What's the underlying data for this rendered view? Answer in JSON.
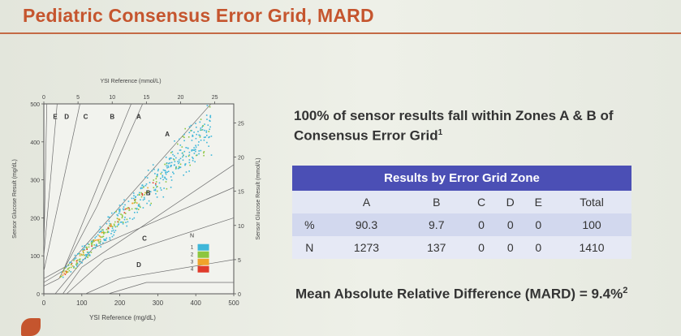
{
  "slide": {
    "title": "Pediatric Consensus Error Grid, MARD"
  },
  "statement": {
    "text": "100% of sensor results fall within Zones A & B of Consensus Error Grid",
    "sup": "1"
  },
  "results_table": {
    "title": "Results by Error Grid Zone",
    "columns": [
      "",
      "A",
      "B",
      "C",
      "D",
      "E",
      "Total"
    ],
    "rows": [
      {
        "label": "%",
        "values": [
          "90.3",
          "9.7",
          "0",
          "0",
          "0",
          "100"
        ]
      },
      {
        "label": "N",
        "values": [
          "1273",
          "137",
          "0",
          "0",
          "0",
          "1410"
        ]
      }
    ]
  },
  "mard": {
    "text": "Mean Absolute Relative Difference (MARD) = 9.4%",
    "sup": "2"
  },
  "chart_data": {
    "type": "scatter",
    "title": "",
    "xlabel": "YSI Reference (mg/dL)",
    "ylabel": "Sensor Glucose Result (mg/dL)",
    "x2label": "YSI Reference (mmol/L)",
    "y2label": "Sensor Glucose Result (mmol/L)",
    "xlim": [
      0,
      500
    ],
    "ylim": [
      0,
      500
    ],
    "x_ticks": [
      0,
      100,
      200,
      300,
      400,
      500
    ],
    "y_ticks": [
      0,
      100,
      200,
      300,
      400,
      500
    ],
    "x2_ticks": [
      0,
      5,
      10,
      15,
      20,
      25
    ],
    "y2_ticks": [
      0,
      5,
      10,
      15,
      20,
      25
    ],
    "zone_labels": [
      {
        "label": "E",
        "x": 30,
        "y": 460
      },
      {
        "label": "D",
        "x": 60,
        "y": 460
      },
      {
        "label": "C",
        "x": 110,
        "y": 460
      },
      {
        "label": "B",
        "x": 180,
        "y": 460
      },
      {
        "label": "A",
        "x": 250,
        "y": 460
      },
      {
        "label": "A",
        "x": 325,
        "y": 415
      },
      {
        "label": "B",
        "x": 275,
        "y": 260
      },
      {
        "label": "C",
        "x": 265,
        "y": 140
      },
      {
        "label": "D",
        "x": 250,
        "y": 70
      }
    ],
    "density_legend": {
      "title": "N",
      "levels": [
        "1",
        "2",
        "3",
        "4"
      ],
      "colors": [
        "#3fb7d9",
        "#8cc63f",
        "#f0a32a",
        "#e03b2b"
      ]
    },
    "scatter": {
      "n_points": 1410,
      "x_range": [
        40,
        440
      ],
      "description_trend": "y ≈ x"
    }
  }
}
